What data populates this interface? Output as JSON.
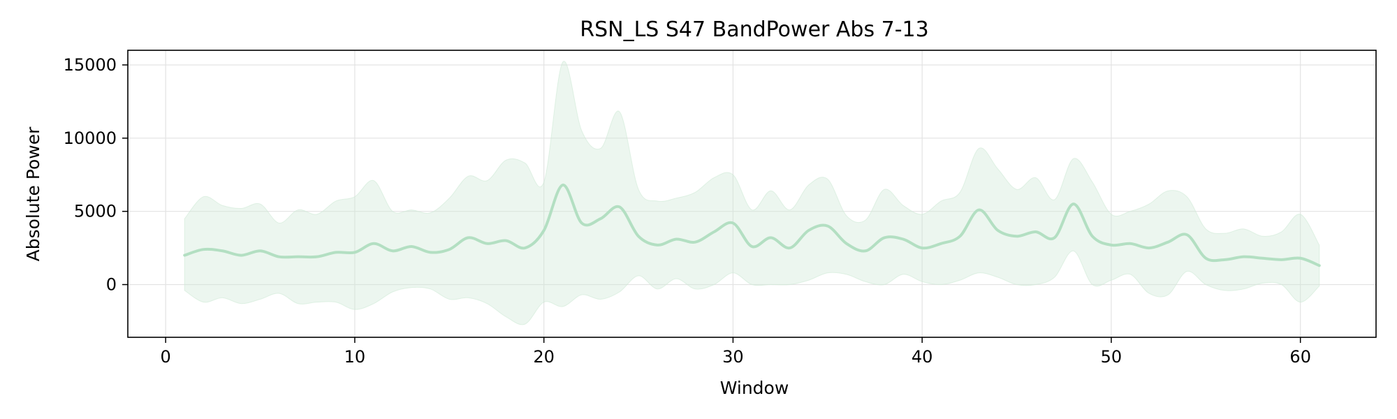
{
  "chart_data": {
    "type": "line",
    "title": "RSN_LS S47 BandPower Abs 7-13",
    "xlabel": "Window",
    "ylabel": "Absolute Power",
    "xlim": [
      -2,
      64
    ],
    "ylim": [
      -3600,
      16000
    ],
    "x_ticks": [
      0,
      10,
      20,
      30,
      40,
      50,
      60
    ],
    "y_ticks": [
      0,
      5000,
      10000,
      15000
    ],
    "grid": true,
    "legend": "none",
    "colors": {
      "line": "#b3dfc2",
      "band": "#cfe9d6",
      "grid": "#e3e3e3",
      "axis": "#000000"
    },
    "series": [
      {
        "x": [
          1,
          2,
          3,
          4,
          5,
          6,
          7,
          8,
          9,
          10,
          11,
          12,
          13,
          14,
          15,
          16,
          17,
          18,
          19,
          20,
          21,
          22,
          23,
          24,
          25,
          26,
          27,
          28,
          29,
          30,
          31,
          32,
          33,
          34,
          35,
          36,
          37,
          38,
          39,
          40,
          41,
          42,
          43,
          44,
          45,
          46,
          47,
          48,
          49,
          50,
          51,
          52,
          53,
          54,
          55,
          56,
          57,
          58,
          59,
          60,
          61
        ],
        "mean": [
          2000,
          2400,
          2300,
          2000,
          2300,
          1900,
          1900,
          1900,
          2200,
          2200,
          2800,
          2300,
          2600,
          2200,
          2400,
          3200,
          2800,
          3000,
          2500,
          3700,
          6800,
          4200,
          4500,
          5300,
          3300,
          2700,
          3100,
          2900,
          3600,
          4200,
          2600,
          3200,
          2500,
          3700,
          4000,
          2800,
          2300,
          3200,
          3100,
          2500,
          2800,
          3300,
          5100,
          3700,
          3300,
          3600,
          3200,
          5500,
          3300,
          2700,
          2800,
          2500,
          2900,
          3400,
          1800,
          1700,
          1900,
          1800,
          1700,
          1800,
          1300
        ],
        "upper": [
          4500,
          6000,
          5400,
          5200,
          5500,
          4200,
          5100,
          4800,
          5700,
          6000,
          7100,
          5000,
          5100,
          4900,
          5900,
          7400,
          7100,
          8500,
          8300,
          7000,
          15200,
          10500,
          9300,
          11800,
          6500,
          5700,
          5900,
          6300,
          7300,
          7500,
          5100,
          6400,
          5100,
          6800,
          7200,
          4700,
          4400,
          6500,
          5400,
          4800,
          5700,
          6300,
          9300,
          7900,
          6500,
          7300,
          5800,
          8600,
          7000,
          4800,
          5000,
          5500,
          6400,
          6000,
          3800,
          3500,
          3800,
          3300,
          3600,
          4800,
          2700
        ],
        "lower": [
          -400,
          -1200,
          -900,
          -1300,
          -1000,
          -600,
          -1300,
          -1200,
          -1200,
          -1700,
          -1300,
          -500,
          -200,
          -300,
          -1000,
          -900,
          -1300,
          -2200,
          -2700,
          -1200,
          -1500,
          -700,
          -1000,
          -500,
          600,
          -300,
          400,
          -300,
          0,
          800,
          0,
          0,
          0,
          300,
          800,
          700,
          200,
          0,
          700,
          200,
          0,
          300,
          800,
          500,
          0,
          0,
          500,
          2300,
          0,
          300,
          700,
          -600,
          -700,
          900,
          0,
          -400,
          -300,
          100,
          0,
          -1200,
          -100
        ]
      }
    ]
  }
}
